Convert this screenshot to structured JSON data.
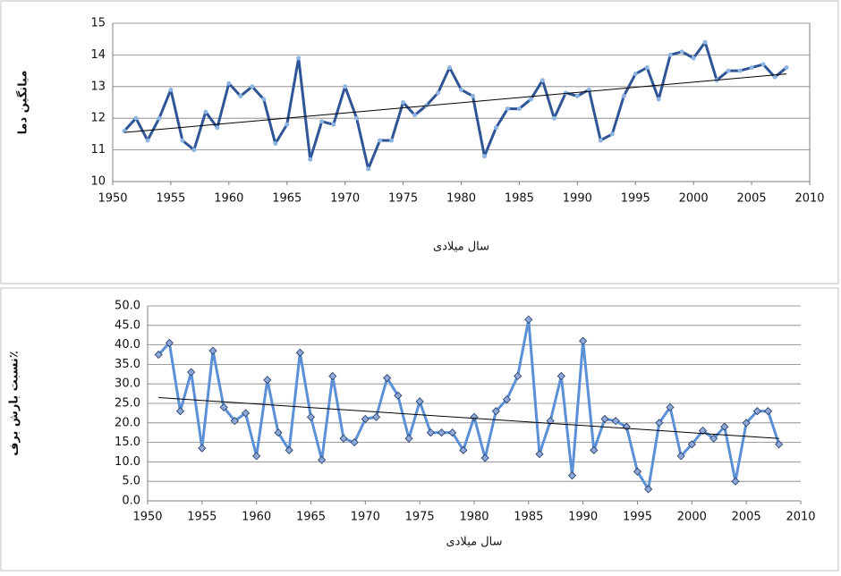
{
  "chart_data": [
    {
      "type": "line",
      "y_label": "میانگین دما",
      "x_label": "سال میلادی",
      "x": [
        1951,
        1952,
        1953,
        1954,
        1955,
        1956,
        1957,
        1958,
        1959,
        1960,
        1961,
        1962,
        1963,
        1964,
        1965,
        1966,
        1967,
        1968,
        1969,
        1970,
        1971,
        1972,
        1973,
        1974,
        1975,
        1976,
        1977,
        1978,
        1979,
        1980,
        1981,
        1982,
        1983,
        1984,
        1985,
        1986,
        1987,
        1988,
        1989,
        1990,
        1991,
        1992,
        1993,
        1994,
        1995,
        1996,
        1997,
        1998,
        1999,
        2000,
        2001,
        2002,
        2003,
        2004,
        2005,
        2006,
        2007,
        2008
      ],
      "values": [
        11.6,
        12.0,
        11.3,
        12.0,
        12.9,
        11.3,
        11.0,
        12.2,
        11.7,
        13.1,
        12.7,
        13.0,
        12.6,
        11.2,
        11.8,
        13.9,
        10.7,
        11.9,
        11.8,
        13.0,
        12.0,
        10.4,
        11.3,
        11.3,
        12.5,
        12.1,
        12.4,
        12.8,
        13.6,
        12.9,
        12.7,
        10.8,
        11.7,
        12.3,
        12.3,
        12.6,
        13.2,
        12.0,
        12.8,
        12.7,
        12.9,
        11.3,
        11.5,
        12.7,
        13.4,
        13.6,
        12.6,
        14.0,
        14.1,
        13.9,
        14.4,
        13.2,
        13.5,
        13.5,
        13.6,
        13.7,
        13.3,
        13.6
      ],
      "color": "#2f5597",
      "marker": "circle",
      "trendline": {
        "x": [
          1951,
          2008
        ],
        "values": [
          11.55,
          13.4
        ],
        "color": "#000000"
      },
      "xlim": [
        1950,
        2010
      ],
      "xticks": [
        1950,
        1955,
        1960,
        1965,
        1970,
        1975,
        1980,
        1985,
        1990,
        1995,
        2000,
        2005,
        2010
      ],
      "ylim": [
        10,
        15
      ],
      "yticks": [
        10,
        11,
        12,
        13,
        14,
        15
      ],
      "grid": true
    },
    {
      "type": "line",
      "y_label": "نسبت بارش برف٪",
      "x_label": "سال میلادی",
      "x": [
        1951,
        1952,
        1953,
        1954,
        1955,
        1956,
        1957,
        1958,
        1959,
        1960,
        1961,
        1962,
        1963,
        1964,
        1965,
        1966,
        1967,
        1968,
        1969,
        1970,
        1971,
        1972,
        1973,
        1974,
        1975,
        1976,
        1977,
        1978,
        1979,
        1980,
        1981,
        1982,
        1983,
        1984,
        1985,
        1986,
        1987,
        1988,
        1989,
        1990,
        1991,
        1992,
        1993,
        1994,
        1995,
        1996,
        1997,
        1998,
        1999,
        2000,
        2001,
        2002,
        2003,
        2004,
        2005,
        2006,
        2007,
        2008
      ],
      "values": [
        37.5,
        40.5,
        23,
        33,
        13.5,
        38.5,
        24,
        20.5,
        22.5,
        11.5,
        31,
        17.5,
        13,
        38,
        21.5,
        10.5,
        32,
        16,
        15,
        21,
        21.5,
        31.5,
        27,
        16,
        25.5,
        17.5,
        17.5,
        17.5,
        13,
        21.5,
        11,
        23,
        26,
        32,
        46.5,
        12,
        20.5,
        32,
        6.5,
        41,
        13,
        21,
        20.5,
        19,
        7.5,
        3,
        20,
        24,
        11.5,
        14.5,
        18,
        16,
        19,
        5,
        20,
        23,
        23,
        14.5
      ],
      "color": "#5b8fd6",
      "marker": "diamond",
      "trendline": {
        "x": [
          1951,
          2008
        ],
        "values": [
          26.5,
          16
        ],
        "color": "#000000"
      },
      "xlim": [
        1950,
        2010
      ],
      "xticks": [
        1950,
        1955,
        1960,
        1965,
        1970,
        1975,
        1980,
        1985,
        1990,
        1995,
        2000,
        2005,
        2010
      ],
      "ylim": [
        0,
        50
      ],
      "yticks": [
        {
          "value": 0,
          "label": "0.0"
        },
        {
          "value": 5,
          "label": "5.0"
        },
        {
          "value": 10,
          "label": "10.0"
        },
        {
          "value": 15,
          "label": "15.0"
        },
        {
          "value": 20,
          "label": "20.0"
        },
        {
          "value": 25,
          "label": "25.0"
        },
        {
          "value": 30,
          "label": "30.0"
        },
        {
          "value": 35,
          "label": "35.0"
        },
        {
          "value": 40,
          "label": "40.0"
        },
        {
          "value": 45,
          "label": "45.0"
        },
        {
          "value": 50,
          "label": "50.0"
        }
      ],
      "grid": true
    }
  ]
}
